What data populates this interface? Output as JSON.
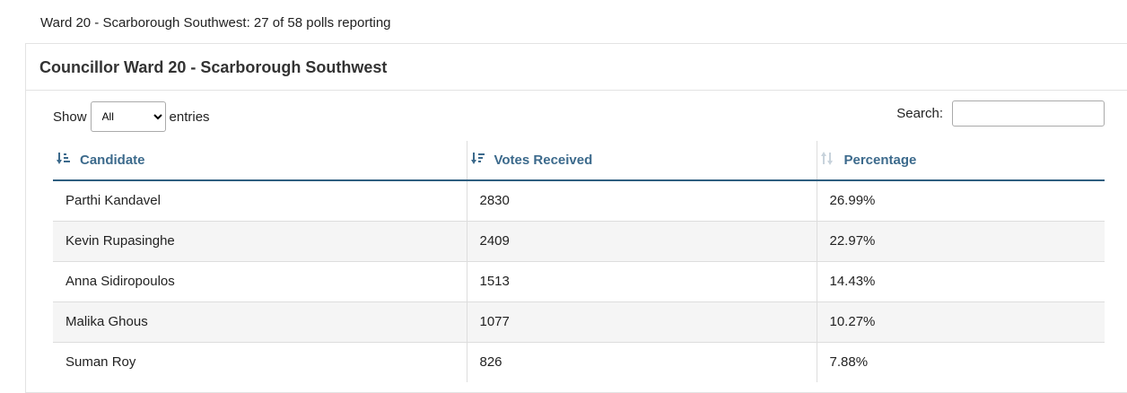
{
  "header": {
    "status": "Ward 20 - Scarborough Southwest: 27 of 58 polls reporting"
  },
  "panel": {
    "title": "Councillor Ward 20 - Scarborough Southwest"
  },
  "controls": {
    "show_label": "Show",
    "show_value": "All",
    "entries_label": "entries",
    "search_label": "Search:"
  },
  "table": {
    "columns": [
      "Candidate",
      "Votes Received",
      "Percentage"
    ],
    "rows": [
      [
        "Parthi Kandavel",
        "2830",
        "26.99%"
      ],
      [
        "Kevin Rupasinghe",
        "2409",
        "22.97%"
      ],
      [
        "Anna Sidiropoulos",
        "1513",
        "14.43%"
      ],
      [
        "Malika Ghous",
        "1077",
        "10.27%"
      ],
      [
        "Suman Roy",
        "826",
        "7.88%"
      ]
    ]
  }
}
